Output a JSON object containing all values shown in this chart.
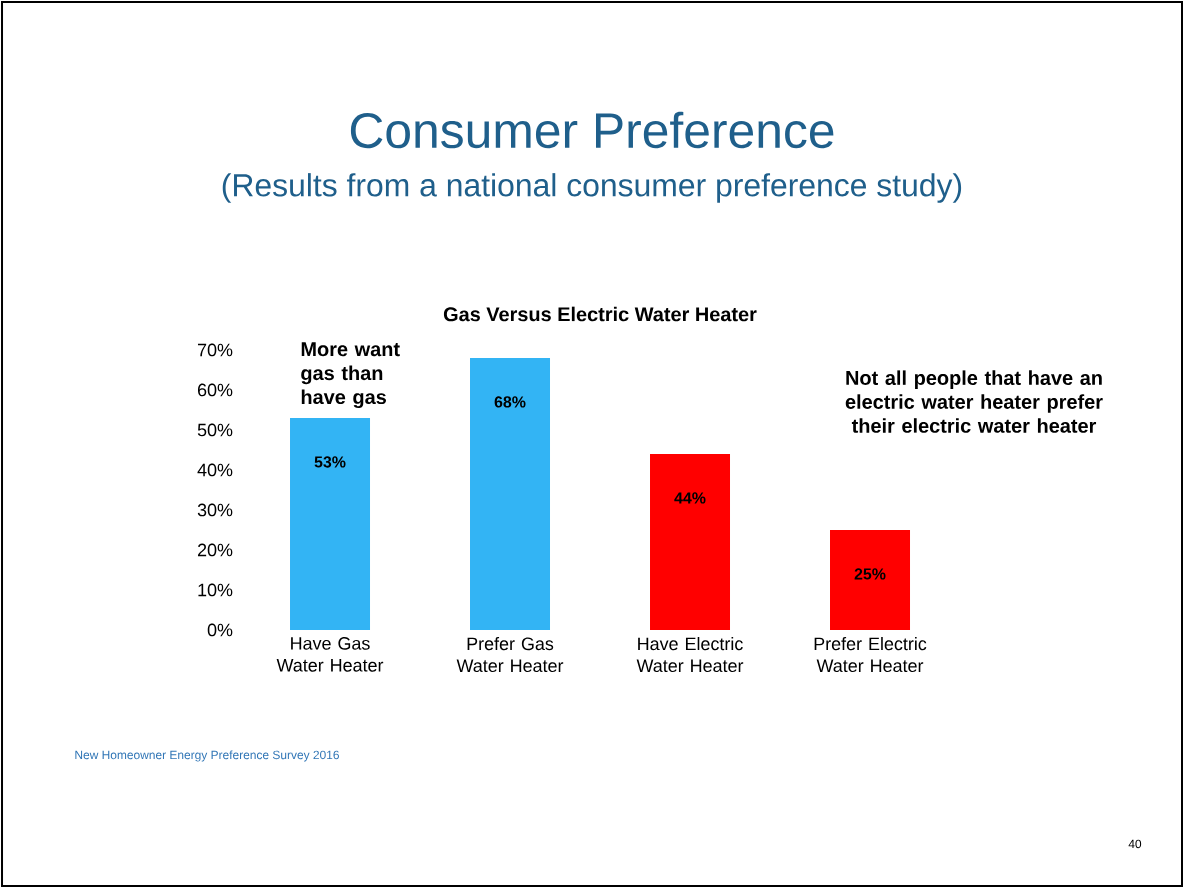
{
  "chart_data": {
    "type": "bar",
    "title": "Consumer Preference",
    "subtitle": "(Results from a national consumer preference study)",
    "categories": [
      "Have Gas Water Heater",
      "Prefer Gas Water Heater",
      "Have Electric Water Heater",
      "Prefer Electric Water Heater"
    ],
    "values": [
      53,
      68,
      44,
      25
    ],
    "colors": [
      "#33b4f4",
      "#33b4f4",
      "#ff0000",
      "#ff0000"
    ],
    "value_labels": [
      "53%",
      "68%",
      "44%",
      "25%"
    ],
    "ylim": [
      0,
      70
    ],
    "yticks": [
      {
        "value": 0,
        "label": "0%"
      },
      {
        "value": 10,
        "label": "10%"
      },
      {
        "value": 20,
        "label": "20%"
      },
      {
        "value": 30,
        "label": "30%"
      },
      {
        "value": 40,
        "label": "40%"
      },
      {
        "value": 50,
        "label": "50%"
      },
      {
        "value": 60,
        "label": "60%"
      },
      {
        "value": 70,
        "label": "70%"
      }
    ],
    "annotations": [
      "Gas Versus Electric Water Heater",
      "More want gas than have gas",
      "Not all people that have an electric water heater prefer their electric water heater",
      "New Homeowner Energy Preference Survey 2016",
      "40"
    ]
  }
}
